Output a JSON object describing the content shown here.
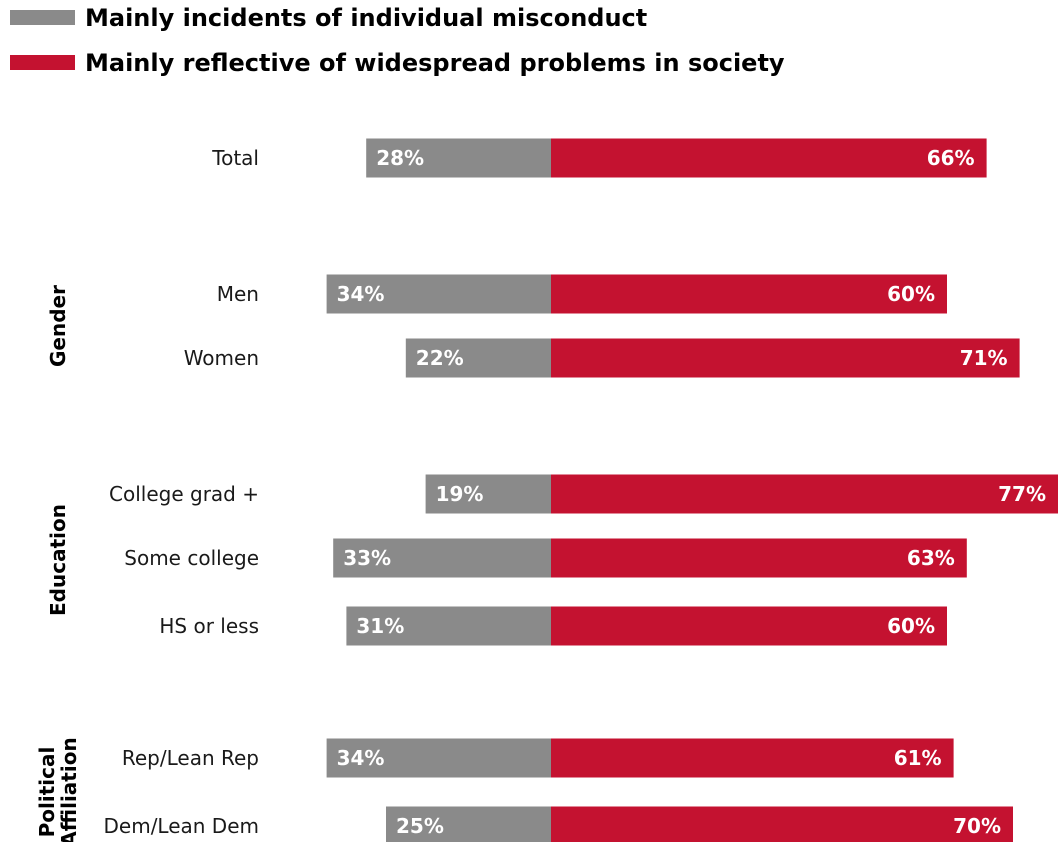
{
  "colors": {
    "individual": "#8a8a8a",
    "widespread": "#c41230",
    "text": "#1a1a1a"
  },
  "chart_data": {
    "type": "bar",
    "orientation": "horizontal-diverging",
    "series": [
      {
        "name": "Mainly incidents of individual misconduct",
        "color_key": "individual"
      },
      {
        "name": "Mainly reflective of widespread problems in society",
        "color_key": "widespread"
      }
    ],
    "legend_position": "top-left",
    "grid": false,
    "groups": [
      {
        "name": "",
        "rows": [
          {
            "label": "Total",
            "individual": 28,
            "widespread": 66
          }
        ]
      },
      {
        "name": "Gender",
        "rows": [
          {
            "label": "Men",
            "individual": 34,
            "widespread": 60
          },
          {
            "label": "Women",
            "individual": 22,
            "widespread": 71
          }
        ]
      },
      {
        "name": "Education",
        "rows": [
          {
            "label": "College grad +",
            "individual": 19,
            "widespread": 77
          },
          {
            "label": "Some college",
            "individual": 33,
            "widespread": 63
          },
          {
            "label": "HS or less",
            "individual": 31,
            "widespread": 60
          }
        ]
      },
      {
        "name": "Political Affiliation",
        "name_lines": [
          "Political",
          "Affiliation"
        ],
        "rows": [
          {
            "label": "Rep/Lean Rep",
            "individual": 34,
            "widespread": 61
          },
          {
            "label": "Dem/Lean Dem",
            "individual": 25,
            "widespread": 70
          }
        ]
      }
    ]
  }
}
